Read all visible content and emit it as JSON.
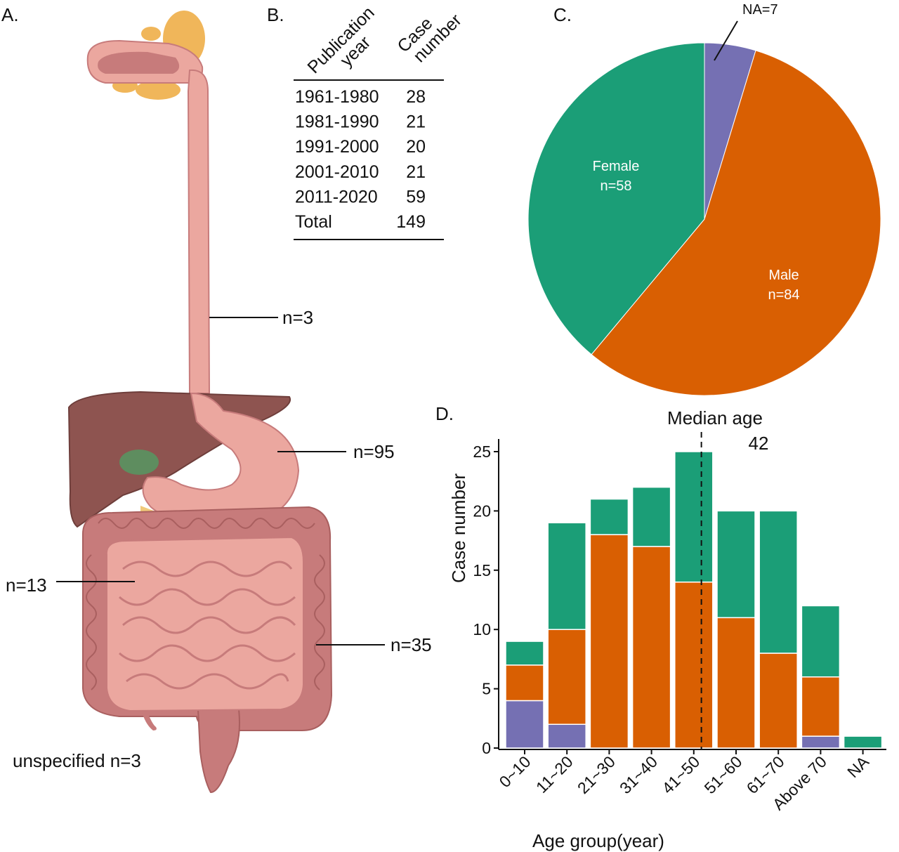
{
  "panels": {
    "a": "A.",
    "b": "B.",
    "c": "C.",
    "d": "D."
  },
  "anatomy": {
    "labels": [
      {
        "id": "esophagus",
        "text": "n=3"
      },
      {
        "id": "stomach",
        "text": "n=95"
      },
      {
        "id": "small-intestine",
        "text": "n=13"
      },
      {
        "id": "colon",
        "text": "n=35"
      },
      {
        "id": "unspecified",
        "text": "unspecified n=3"
      }
    ]
  },
  "table": {
    "headers": [
      {
        "line1": "Publication",
        "line2": "year"
      },
      {
        "line1": "Case",
        "line2": "number"
      }
    ],
    "rows": [
      {
        "year": "1961-1980",
        "count": "28"
      },
      {
        "year": "1981-1990",
        "count": "21"
      },
      {
        "year": "1991-2000",
        "count": "20"
      },
      {
        "year": "2001-2010",
        "count": "21"
      },
      {
        "year": "2011-2020",
        "count": "59"
      },
      {
        "year": "Total",
        "count": "149"
      }
    ]
  },
  "colors": {
    "na": "#7570b3",
    "male": "#d95f02",
    "female": "#1b9e77",
    "organ_pink": "#eba79f",
    "organ_dark": "#c77b7b",
    "liver": "#8e5450",
    "gland": "#f0b65a"
  },
  "chart_data": [
    {
      "type": "pie",
      "slices": [
        {
          "label": "NA=7",
          "category": "NA",
          "value": 7,
          "color": "#7570b3"
        },
        {
          "label": "Male",
          "sublabel": "n=84",
          "category": "Male",
          "value": 84,
          "color": "#d95f02"
        },
        {
          "label": "Female",
          "sublabel": "n=58",
          "category": "Female",
          "value": 58,
          "color": "#1b9e77"
        }
      ]
    },
    {
      "type": "bar",
      "stacked": true,
      "categories": [
        "0~10",
        "11~20",
        "21~30",
        "31~40",
        "41~50",
        "51~60",
        "61~70",
        "Above 70",
        "NA"
      ],
      "series": [
        {
          "category": "NA",
          "color": "#7570b3",
          "values": [
            4,
            2,
            0,
            0,
            0,
            0,
            0,
            1,
            0
          ]
        },
        {
          "category": "Male",
          "color": "#d95f02",
          "values": [
            3,
            8,
            18,
            17,
            14,
            11,
            8,
            5,
            0
          ]
        },
        {
          "category": "Female",
          "color": "#1b9e77",
          "values": [
            2,
            9,
            3,
            5,
            11,
            9,
            12,
            6,
            1
          ]
        }
      ],
      "ylim": [
        0,
        25
      ],
      "yticks": [
        0,
        5,
        10,
        15,
        20,
        25
      ],
      "xlabel": "Age group(year)",
      "ylabel": "Case number",
      "median_line": {
        "label": "Median age",
        "value_label": "42",
        "position": 4.18
      },
      "grid": false
    }
  ]
}
